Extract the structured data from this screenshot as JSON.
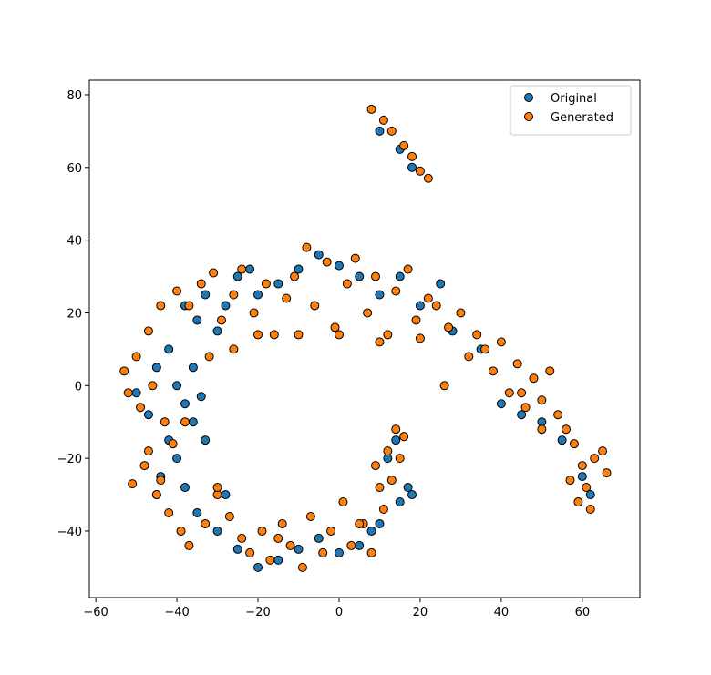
{
  "chart_data": {
    "type": "scatter",
    "xlim": [
      -61.6,
      74.2
    ],
    "ylim": [
      -58.3,
      84.0
    ],
    "xticks": [
      {
        "value": -60,
        "label": "−60"
      },
      {
        "value": -40,
        "label": "−40"
      },
      {
        "value": -20,
        "label": "−20"
      },
      0,
      20,
      40,
      60
    ],
    "yticks": [
      {
        "value": -40,
        "label": "−40"
      },
      {
        "value": -20,
        "label": "−20"
      },
      0,
      20,
      40,
      60,
      80
    ],
    "legend": "upper right",
    "series": [
      {
        "name": "Original",
        "color": "#1f77b4",
        "x": [
          -38,
          -35,
          -33,
          -30,
          -28,
          -25,
          -22,
          -20,
          -15,
          -10,
          -5,
          0,
          5,
          10,
          15,
          20,
          25,
          28,
          35,
          40,
          45,
          50,
          55,
          60,
          62,
          -42,
          -45,
          -40,
          -38,
          -36,
          -42,
          -40,
          -44,
          -45,
          -38,
          -35,
          -30,
          -25,
          -20,
          -15,
          -10,
          -5,
          0,
          5,
          10,
          15,
          17,
          12,
          14,
          18,
          -36,
          -34,
          -33,
          -47,
          10,
          15,
          18,
          -50,
          -28,
          8
        ],
        "y": [
          22,
          18,
          25,
          15,
          22,
          30,
          32,
          25,
          28,
          32,
          36,
          33,
          30,
          25,
          30,
          22,
          28,
          15,
          10,
          -5,
          -8,
          -10,
          -15,
          -25,
          -30,
          10,
          5,
          0,
          -5,
          -10,
          -15,
          -20,
          -25,
          -30,
          -28,
          -35,
          -40,
          -45,
          -50,
          -48,
          -45,
          -42,
          -46,
          -44,
          -38,
          -32,
          -28,
          -20,
          -15,
          -30,
          5,
          -3,
          -15,
          -8,
          70,
          65,
          60,
          -2,
          -30,
          -40
        ]
      },
      {
        "name": "Generated",
        "color": "#ff7f0e",
        "x": [
          -40,
          -37,
          -34,
          -31,
          -29,
          -26,
          -24,
          -21,
          -18,
          -16,
          -13,
          -11,
          -8,
          -6,
          -3,
          -1,
          2,
          4,
          7,
          9,
          12,
          14,
          17,
          19,
          22,
          24,
          27,
          30,
          32,
          34,
          36,
          38,
          40,
          42,
          44,
          46,
          48,
          50,
          52,
          54,
          56,
          58,
          60,
          61,
          63,
          65,
          66,
          59,
          57,
          62,
          -44,
          -47,
          -50,
          -53,
          -52,
          -49,
          -46,
          -43,
          -41,
          -48,
          -51,
          -45,
          -47,
          -44,
          -42,
          -39,
          -37,
          -33,
          -30,
          -27,
          -24,
          -22,
          -19,
          -17,
          -14,
          -12,
          -9,
          -7,
          -4,
          -2,
          1,
          3,
          6,
          8,
          11,
          13,
          15,
          16,
          10,
          12,
          14,
          9,
          8,
          11,
          13,
          16,
          18,
          20,
          22,
          -20,
          -10,
          0,
          10,
          20,
          -30,
          -15,
          5,
          26,
          -32,
          -26,
          -38,
          45,
          50
        ],
        "y": [
          26,
          22,
          28,
          31,
          18,
          25,
          32,
          20,
          28,
          14,
          24,
          30,
          38,
          22,
          34,
          16,
          28,
          35,
          20,
          30,
          14,
          26,
          32,
          18,
          24,
          22,
          16,
          20,
          8,
          14,
          10,
          4,
          12,
          -2,
          6,
          -6,
          2,
          -4,
          4,
          -8,
          -12,
          -16,
          -22,
          -28,
          -20,
          -18,
          -24,
          -32,
          -26,
          -34,
          22,
          15,
          8,
          4,
          -2,
          -6,
          0,
          -10,
          -16,
          -22,
          -27,
          -30,
          -18,
          -26,
          -35,
          -40,
          -44,
          -38,
          -30,
          -36,
          -42,
          -46,
          -40,
          -48,
          -38,
          -44,
          -50,
          -36,
          -46,
          -40,
          -32,
          -44,
          -38,
          -46,
          -34,
          -26,
          -20,
          -14,
          -28,
          -18,
          -12,
          -22,
          76,
          73,
          70,
          66,
          63,
          59,
          57,
          14,
          14,
          14,
          12,
          13,
          -28,
          -42,
          -38,
          0,
          8,
          10,
          -10,
          -2,
          -12
        ]
      }
    ]
  }
}
